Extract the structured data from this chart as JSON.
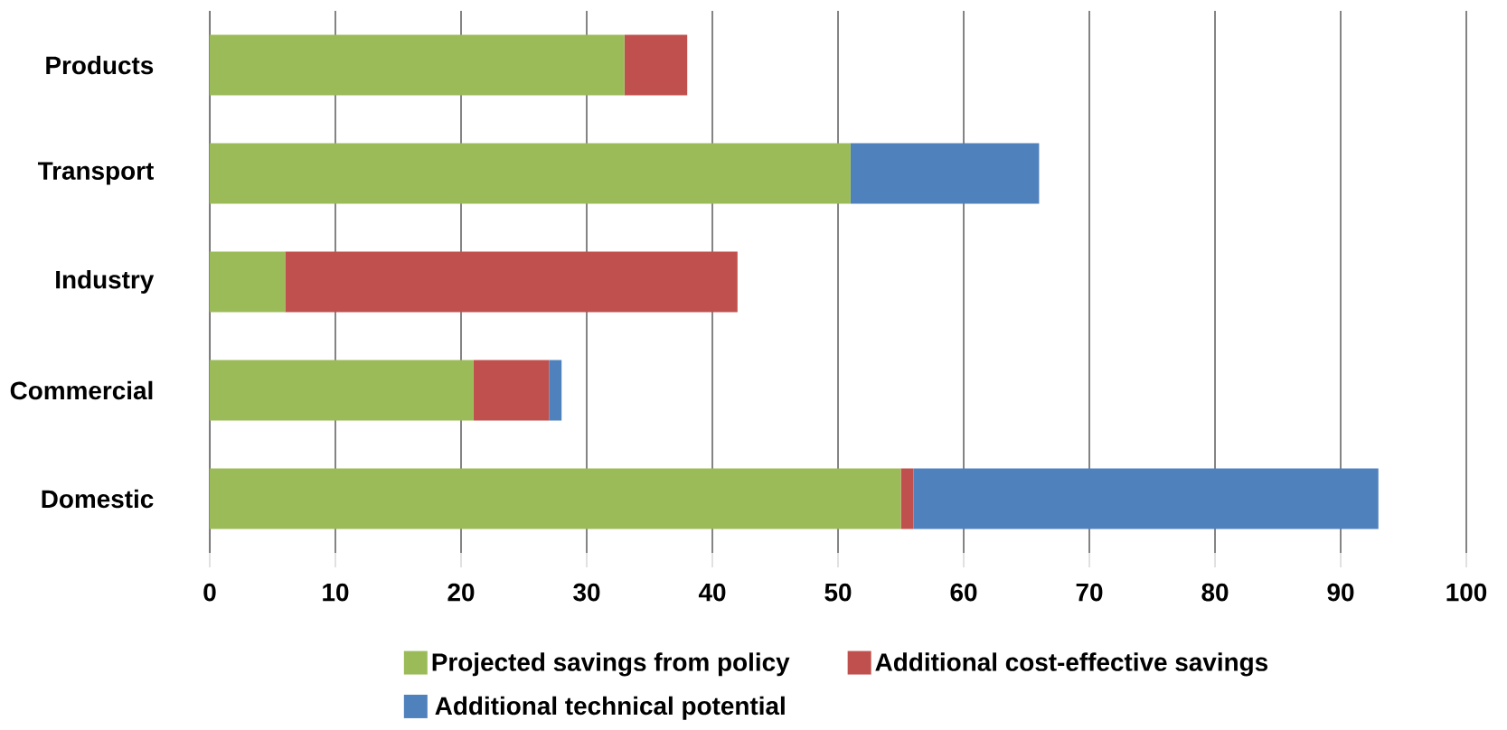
{
  "chart_data": {
    "type": "bar",
    "orientation": "horizontal",
    "stacked": true,
    "categories": [
      "Products",
      "Transport",
      "Industry",
      "Commercial",
      "Domestic"
    ],
    "series": [
      {
        "name": "Projected savings from policy",
        "color": "#9bbb59",
        "values": [
          33,
          51,
          6,
          21,
          55
        ]
      },
      {
        "name": "Additional cost-effective savings",
        "color": "#c0504d",
        "values": [
          5,
          0,
          36,
          6,
          1
        ]
      },
      {
        "name": "Additional technical potential",
        "color": "#4f81bd",
        "values": [
          0,
          15,
          0,
          1,
          37
        ]
      }
    ],
    "xlim": [
      0,
      100
    ],
    "xticks": [
      0,
      10,
      20,
      30,
      40,
      50,
      60,
      70,
      80,
      90,
      100
    ],
    "grid": "x",
    "legend": "bottom"
  }
}
